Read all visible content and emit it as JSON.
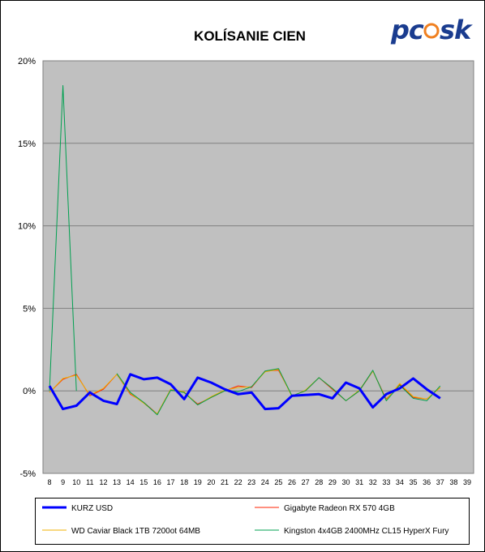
{
  "logo": {
    "text": "pcosk"
  },
  "chart_data": {
    "type": "line",
    "title": "KOLÍSANIE CIEN",
    "xlabel": "",
    "ylabel": "",
    "x": [
      8,
      9,
      10,
      11,
      12,
      13,
      14,
      15,
      16,
      17,
      18,
      19,
      20,
      21,
      22,
      23,
      24,
      25,
      26,
      27,
      28,
      29,
      30,
      31,
      32,
      33,
      34,
      35,
      36,
      37,
      38,
      39
    ],
    "ylim": [
      -5,
      20
    ],
    "yticks": [
      -5,
      0,
      5,
      10,
      15,
      20
    ],
    "ytick_labels": [
      "-5%",
      "0%",
      "5%",
      "10%",
      "15%",
      "20%"
    ],
    "grid": "horizontal",
    "plot_background": "#c0c0c0",
    "legend_position": "bottom",
    "series": [
      {
        "name": "KURZ USD",
        "color": "#0000ff",
        "width": "thick",
        "points": [
          [
            8,
            0.3
          ],
          [
            9,
            -1.1
          ],
          [
            10,
            -0.9
          ],
          [
            11,
            -0.1
          ],
          [
            12,
            -0.6
          ],
          [
            13,
            -0.8
          ],
          [
            14,
            1.0
          ],
          [
            15,
            0.7
          ],
          [
            16,
            0.8
          ],
          [
            17,
            0.4
          ],
          [
            18,
            -0.5
          ],
          [
            19,
            0.8
          ],
          [
            20,
            0.5
          ],
          [
            21,
            0.1
          ],
          [
            22,
            -0.2
          ],
          [
            23,
            -0.1
          ],
          [
            24,
            -1.1
          ],
          [
            25,
            -1.05
          ],
          [
            26,
            -0.3
          ],
          [
            27,
            -0.25
          ],
          [
            28,
            -0.2
          ],
          [
            29,
            -0.45
          ],
          [
            30,
            0.5
          ],
          [
            31,
            0.15
          ],
          [
            32,
            -1.0
          ],
          [
            33,
            -0.2
          ],
          [
            34,
            0.15
          ],
          [
            35,
            0.75
          ],
          [
            36,
            0.1
          ],
          [
            37,
            -0.45
          ]
        ]
      },
      {
        "name": "Gigabyte Radeon RX 570 4GB",
        "color": "#ff2000",
        "width": "thin",
        "points": [
          [
            8,
            -0.1
          ],
          [
            9,
            0.7
          ],
          [
            10,
            1.0
          ],
          [
            11,
            -0.3
          ],
          [
            12,
            0.1
          ],
          [
            13,
            1.0
          ],
          [
            14,
            -0.2
          ],
          [
            15,
            -0.7
          ],
          [
            16,
            -1.4
          ],
          [
            17,
            0.1
          ],
          [
            18,
            -0.1
          ],
          [
            19,
            -0.8
          ],
          [
            20,
            -0.4
          ],
          [
            21,
            0.0
          ],
          [
            22,
            0.3
          ],
          [
            23,
            0.2
          ],
          [
            24,
            1.2
          ],
          [
            25,
            1.25
          ],
          [
            26,
            -0.3
          ],
          [
            27,
            0.0
          ],
          [
            28,
            0.8
          ],
          [
            29,
            0.1
          ],
          [
            30,
            -0.6
          ],
          [
            31,
            0.0
          ],
          [
            32,
            1.2
          ],
          [
            33,
            -0.5
          ],
          [
            34,
            0.4
          ],
          [
            35,
            -0.4
          ],
          [
            36,
            -0.5
          ],
          [
            37,
            0.2
          ]
        ]
      },
      {
        "name": "WD Caviar Black 1TB 7200ot 64MB",
        "color": "#f0b000",
        "width": "thin",
        "points": [
          [
            8,
            -0.1
          ],
          [
            9,
            0.75
          ],
          [
            10,
            0.95
          ],
          [
            11,
            -0.25
          ],
          [
            12,
            0.15
          ],
          [
            13,
            1.0
          ],
          [
            14,
            -0.15
          ],
          [
            15,
            -0.75
          ],
          [
            16,
            -1.4
          ],
          [
            17,
            0.1
          ],
          [
            18,
            -0.05
          ],
          [
            19,
            -0.85
          ],
          [
            20,
            -0.35
          ],
          [
            21,
            0.05
          ],
          [
            22,
            0.2
          ],
          [
            23,
            0.25
          ],
          [
            24,
            1.15
          ],
          [
            25,
            1.3
          ],
          [
            26,
            -0.35
          ],
          [
            27,
            0.05
          ],
          [
            28,
            0.8
          ],
          [
            29,
            0.15
          ],
          [
            30,
            -0.6
          ],
          [
            31,
            0.05
          ],
          [
            32,
            1.2
          ],
          [
            33,
            -0.55
          ],
          [
            34,
            0.45
          ],
          [
            35,
            -0.35
          ],
          [
            36,
            -0.5
          ],
          [
            37,
            0.2
          ]
        ]
      },
      {
        "name": "Kingston 4x4GB 2400MHz CL15 HyperX Fury",
        "color": "#00a050",
        "width": "thin",
        "points": [
          [
            8,
            0.0
          ],
          [
            9,
            18.5
          ],
          [
            10,
            0.0
          ],
          [
            null,
            null
          ],
          [
            13,
            1.05
          ],
          [
            14,
            -0.1
          ],
          [
            15,
            -0.7
          ],
          [
            16,
            -1.45
          ],
          [
            17,
            0.05
          ],
          [
            18,
            -0.1
          ],
          [
            19,
            -0.85
          ],
          [
            20,
            -0.4
          ],
          [
            21,
            0.0
          ],
          [
            22,
            -0.05
          ],
          [
            23,
            0.25
          ],
          [
            24,
            1.2
          ],
          [
            25,
            1.35
          ],
          [
            26,
            -0.3
          ],
          [
            27,
            0.0
          ],
          [
            28,
            0.8
          ],
          [
            29,
            0.15
          ],
          [
            30,
            -0.6
          ],
          [
            31,
            0.0
          ],
          [
            32,
            1.25
          ],
          [
            33,
            -0.6
          ],
          [
            34,
            0.35
          ],
          [
            35,
            -0.45
          ],
          [
            36,
            -0.6
          ],
          [
            37,
            0.3
          ]
        ]
      }
    ]
  }
}
